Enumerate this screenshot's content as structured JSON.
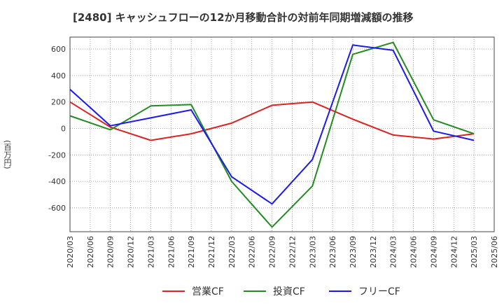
{
  "chart_data": {
    "type": "line",
    "title": "[2480]  キャッシュフローの12か月移動合計の対前年同期増減額の推移",
    "ylabel": "(百万円)",
    "xlabel": "",
    "ylim": [
      -780,
      690
    ],
    "yticks": [
      -600,
      -400,
      -200,
      0,
      200,
      400,
      600
    ],
    "grid": true,
    "legend_position": "bottom",
    "categories": [
      "2020/03",
      "2020/06",
      "2020/09",
      "2020/12",
      "2021/03",
      "2021/06",
      "2021/09",
      "2021/12",
      "2022/03",
      "2022/06",
      "2022/09",
      "2022/12",
      "2023/03",
      "2023/06",
      "2023/09",
      "2023/12",
      "2024/03",
      "2024/06",
      "2024/09",
      "2024/12",
      "2025/03",
      "2025/06"
    ],
    "series": [
      {
        "name": "営業CF",
        "color": "#dd2222",
        "points": [
          [
            "2020/03",
            200
          ],
          [
            "2020/09",
            10
          ],
          [
            "2021/03",
            -90
          ],
          [
            "2021/09",
            -40
          ],
          [
            "2022/03",
            40
          ],
          [
            "2022/09",
            175
          ],
          [
            "2023/03",
            200
          ],
          [
            "2023/09",
            70
          ],
          [
            "2024/03",
            -50
          ],
          [
            "2024/09",
            -80
          ],
          [
            "2025/03",
            -40
          ]
        ]
      },
      {
        "name": "投資CF",
        "color": "#228b22",
        "points": [
          [
            "2020/03",
            95
          ],
          [
            "2020/09",
            -10
          ],
          [
            "2021/03",
            170
          ],
          [
            "2021/09",
            180
          ],
          [
            "2022/03",
            -400
          ],
          [
            "2022/09",
            -745
          ],
          [
            "2023/03",
            -435
          ],
          [
            "2023/09",
            560
          ],
          [
            "2024/03",
            650
          ],
          [
            "2024/09",
            65
          ],
          [
            "2025/03",
            -40
          ]
        ]
      },
      {
        "name": "フリーCF",
        "color": "#1a1aee",
        "points": [
          [
            "2020/03",
            295
          ],
          [
            "2020/09",
            20
          ],
          [
            "2021/03",
            80
          ],
          [
            "2021/09",
            140
          ],
          [
            "2022/03",
            -365
          ],
          [
            "2022/09",
            -570
          ],
          [
            "2023/03",
            -235
          ],
          [
            "2023/09",
            630
          ],
          [
            "2024/03",
            590
          ],
          [
            "2024/09",
            -20
          ],
          [
            "2025/03",
            -90
          ]
        ]
      }
    ]
  }
}
